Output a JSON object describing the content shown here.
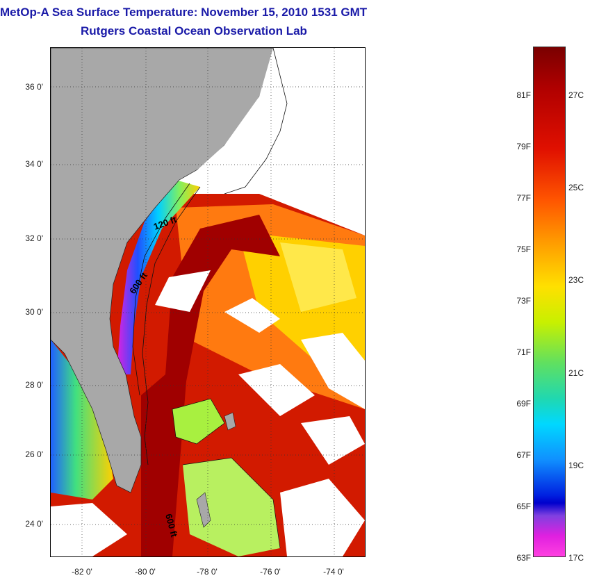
{
  "header": {
    "title": "MetOp-A Sea Surface Temperature:  November 15, 2010 1531 GMT",
    "subtitle": "Rutgers Coastal Ocean Observation Lab"
  },
  "map": {
    "lat_labels": [
      "36 0'",
      "34 0'",
      "32 0'",
      "30 0'",
      "28 0'",
      "26 0'",
      "24 0'"
    ],
    "lon_labels": [
      "-82 0'",
      "-80 0'",
      "-78 0'",
      "-76 0'",
      "-74 0'"
    ],
    "contour_labels": [
      "120 ft",
      "600 ft",
      "600 ft"
    ],
    "colors": {
      "land": "#a8a8a8",
      "cloud": "#ffffff",
      "warm": "#d21a00",
      "hot": "#a00000",
      "orange": "#ff7a10",
      "yellow": "#ffe000",
      "green": "#a8f040",
      "blue": "#2090ff"
    }
  },
  "colorbar": {
    "fahrenheit": [
      "81F",
      "79F",
      "77F",
      "75F",
      "73F",
      "71F",
      "69F",
      "67F",
      "65F",
      "63F"
    ],
    "celsius": [
      "27C",
      "25C",
      "23C",
      "21C",
      "19C",
      "17C"
    ]
  }
}
